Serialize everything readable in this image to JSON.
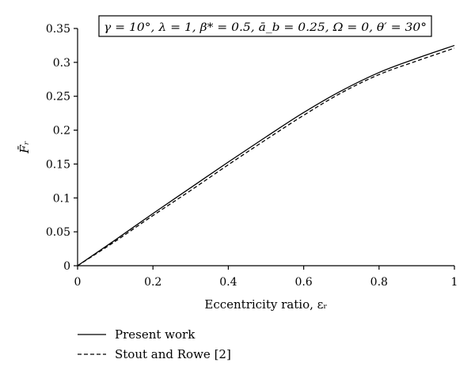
{
  "chart_data": {
    "type": "line",
    "xlabel": "Eccentricity ratio, εᵣ",
    "ylabel": "F̄ᵣ",
    "annotation": "γ = 10°, λ = 1, β* = 0.5, ā_b = 0.25, Ω = 0, θ′ = 30°",
    "xlim": [
      0,
      1
    ],
    "ylim": [
      0,
      0.35
    ],
    "x_ticks": [
      0,
      0.2,
      0.4,
      0.6,
      0.8,
      1
    ],
    "x_tick_labels": [
      "0",
      "0.2",
      "0.4",
      "0.6",
      "0.8",
      "1"
    ],
    "y_ticks": [
      0,
      0.05,
      0.1,
      0.15,
      0.2,
      0.25,
      0.3,
      0.35
    ],
    "y_tick_labels": [
      "0",
      "0.05",
      "0.1",
      "0.15",
      "0.2",
      "0.25",
      "0.3",
      "0.35"
    ],
    "grid": false,
    "legend_position": "bottom-left",
    "series": [
      {
        "name": "Present work",
        "style": "solid",
        "x": [
          0,
          0.1,
          0.2,
          0.3,
          0.4,
          0.5,
          0.6,
          0.7,
          0.8,
          0.9,
          1.0
        ],
        "y": [
          0,
          0.038,
          0.077,
          0.115,
          0.153,
          0.19,
          0.226,
          0.258,
          0.285,
          0.306,
          0.325
        ]
      },
      {
        "name": "Stout and Rowe [2]",
        "style": "dashed",
        "x": [
          0,
          0.1,
          0.2,
          0.3,
          0.4,
          0.5,
          0.6,
          0.7,
          0.8,
          0.9,
          1.0
        ],
        "y": [
          0,
          0.036,
          0.074,
          0.111,
          0.149,
          0.186,
          0.222,
          0.255,
          0.282,
          0.302,
          0.321
        ]
      }
    ]
  }
}
